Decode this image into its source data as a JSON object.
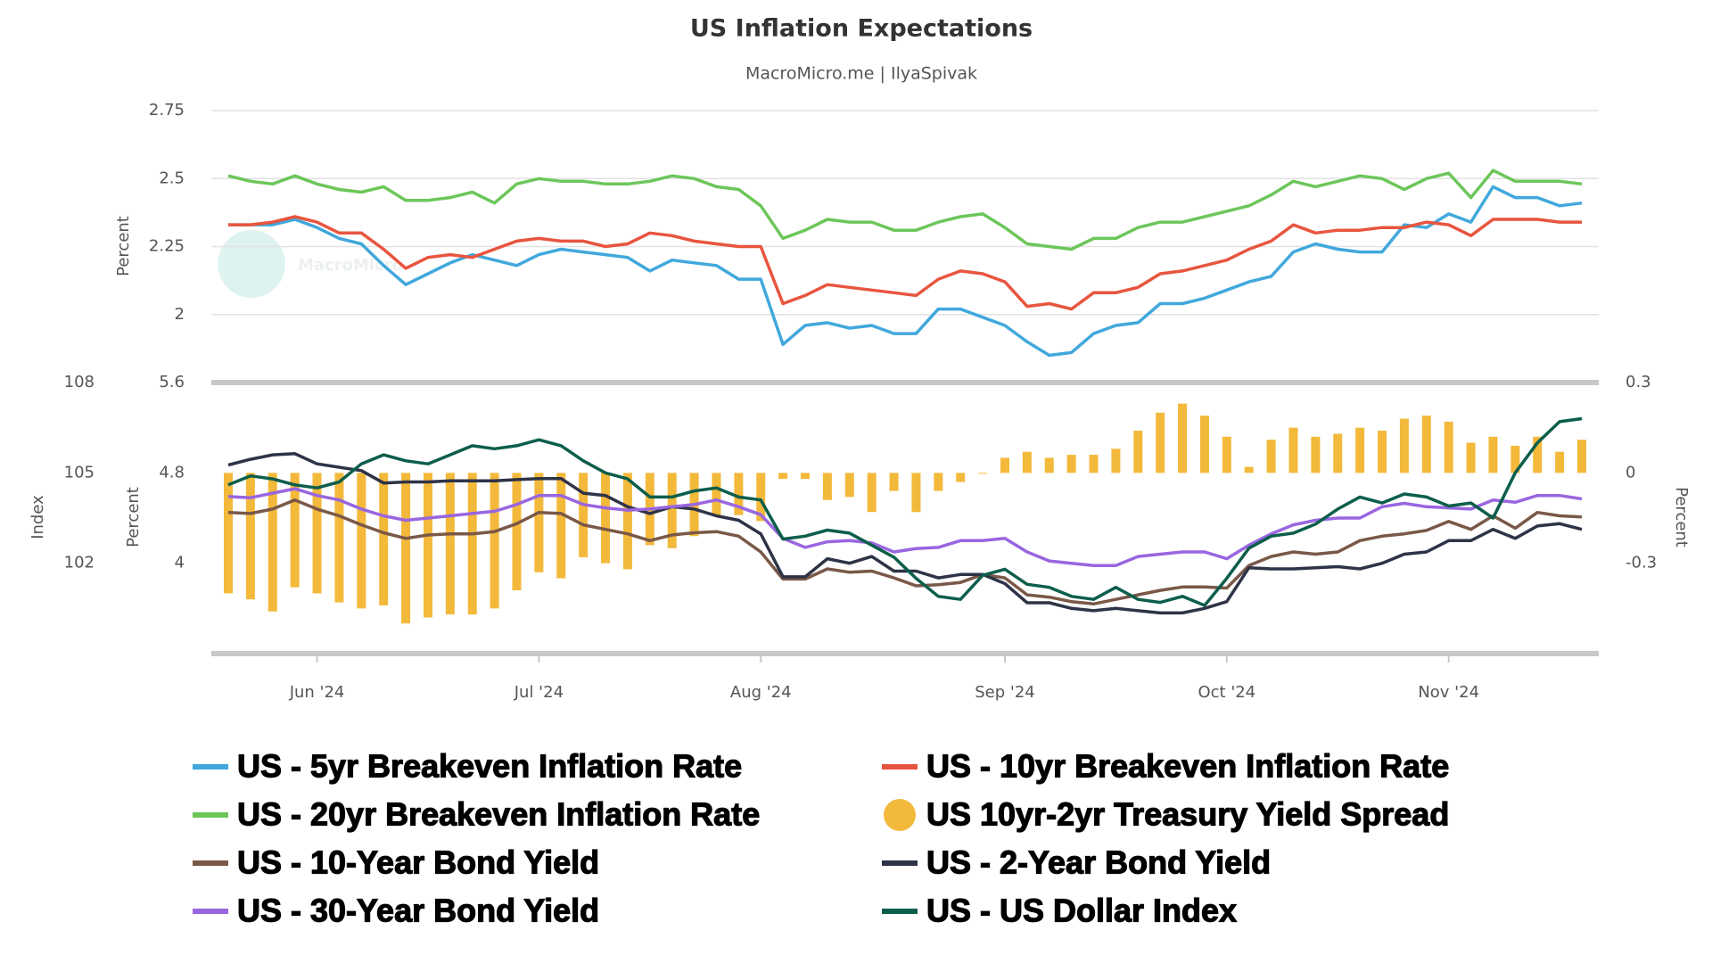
{
  "chart_data": [
    {
      "type": "line",
      "title": "US Inflation Expectations",
      "subtitle": "MacroMicro.me | IlyaSpivak",
      "watermark": "MacroMicro",
      "ylabel": "Percent",
      "ylim": [
        1.75,
        2.75
      ],
      "yticks": [
        2,
        2.25,
        2.5,
        2.75
      ],
      "grid": true,
      "series": [
        {
          "name": "US - 5yr Breakeven Inflation Rate",
          "color": "#41a8dc",
          "values": [
            2.33,
            2.33,
            2.33,
            2.35,
            2.32,
            2.28,
            2.26,
            2.18,
            2.11,
            2.15,
            2.19,
            2.22,
            2.2,
            2.18,
            2.22,
            2.24,
            2.23,
            2.22,
            2.21,
            2.16,
            2.2,
            2.19,
            2.18,
            2.13,
            2.13,
            1.89,
            1.96,
            1.97,
            1.95,
            1.96,
            1.93,
            1.93,
            2.02,
            2.02,
            1.99,
            1.96,
            1.9,
            1.85,
            1.86,
            1.93,
            1.96,
            1.97,
            2.04,
            2.04,
            2.06,
            2.09,
            2.12,
            2.14,
            2.23,
            2.26,
            2.24,
            2.23,
            2.23,
            2.33,
            2.32,
            2.37,
            2.34,
            2.47,
            2.43,
            2.43,
            2.4,
            2.41
          ]
        },
        {
          "name": "US - 10yr Breakeven Inflation Rate",
          "color": "#e8553f",
          "values": [
            2.33,
            2.33,
            2.34,
            2.36,
            2.34,
            2.3,
            2.3,
            2.24,
            2.17,
            2.21,
            2.22,
            2.21,
            2.24,
            2.27,
            2.28,
            2.27,
            2.27,
            2.25,
            2.26,
            2.3,
            2.29,
            2.27,
            2.26,
            2.25,
            2.25,
            2.04,
            2.07,
            2.11,
            2.1,
            2.09,
            2.08,
            2.07,
            2.13,
            2.16,
            2.15,
            2.12,
            2.03,
            2.04,
            2.02,
            2.08,
            2.08,
            2.1,
            2.15,
            2.16,
            2.18,
            2.2,
            2.24,
            2.27,
            2.33,
            2.3,
            2.31,
            2.31,
            2.32,
            2.32,
            2.34,
            2.33,
            2.29,
            2.35,
            2.35,
            2.35,
            2.34,
            2.34
          ]
        },
        {
          "name": "US - 20yr Breakeven Inflation Rate",
          "color": "#6cc65a",
          "values": [
            2.51,
            2.49,
            2.48,
            2.51,
            2.48,
            2.46,
            2.45,
            2.47,
            2.42,
            2.42,
            2.43,
            2.45,
            2.41,
            2.48,
            2.5,
            2.49,
            2.49,
            2.48,
            2.48,
            2.49,
            2.51,
            2.5,
            2.47,
            2.46,
            2.4,
            2.28,
            2.31,
            2.35,
            2.34,
            2.34,
            2.31,
            2.31,
            2.34,
            2.36,
            2.37,
            2.32,
            2.26,
            2.25,
            2.24,
            2.28,
            2.28,
            2.32,
            2.34,
            2.34,
            2.36,
            2.38,
            2.4,
            2.44,
            2.49,
            2.47,
            2.49,
            2.51,
            2.5,
            2.46,
            2.5,
            2.52,
            2.43,
            2.53,
            2.49,
            2.49,
            2.49,
            2.48
          ]
        }
      ]
    },
    {
      "type": "combo",
      "categories": [
        null,
        null,
        null,
        null,
        "Jun '24",
        null,
        null,
        null,
        null,
        null,
        null,
        null,
        null,
        null,
        "Jul '24",
        null,
        null,
        null,
        null,
        null,
        null,
        null,
        null,
        null,
        "Aug '24",
        null,
        null,
        null,
        null,
        null,
        null,
        null,
        null,
        null,
        null,
        "Sep '24",
        null,
        null,
        null,
        null,
        null,
        null,
        null,
        null,
        null,
        "Oct '24",
        null,
        null,
        null,
        null,
        null,
        null,
        null,
        null,
        null,
        "Nov '24",
        null,
        null,
        null,
        null,
        null,
        null
      ],
      "ylabel": "Percent",
      "ylim": [
        3.2,
        5.6
      ],
      "yticks": [
        4,
        4.8,
        5.6
      ],
      "y2label": "Percent",
      "y2lim": [
        -0.6,
        0.3
      ],
      "y2ticks": [
        -0.3,
        0,
        0.3
      ],
      "y3label": "Index",
      "y3lim": [
        99,
        108
      ],
      "y3ticks": [
        102,
        105,
        108
      ],
      "series": [
        {
          "name": "US 10yr-2yr Treasury Yield Spread",
          "type": "bar",
          "axis": "y2",
          "color": "#f3b93b",
          "values": [
            -0.4,
            -0.42,
            -0.46,
            -0.38,
            -0.4,
            -0.43,
            -0.45,
            -0.44,
            -0.5,
            -0.48,
            -0.47,
            -0.47,
            -0.45,
            -0.39,
            -0.33,
            -0.35,
            -0.28,
            -0.3,
            -0.32,
            -0.24,
            -0.25,
            -0.21,
            -0.14,
            -0.14,
            -0.16,
            -0.02,
            -0.02,
            -0.09,
            -0.08,
            -0.13,
            -0.06,
            -0.13,
            -0.06,
            -0.03,
            0,
            0.05,
            0.07,
            0.05,
            0.06,
            0.06,
            0.08,
            0.14,
            0.2,
            0.23,
            0.19,
            0.12,
            0.02,
            0.11,
            0.15,
            0.12,
            0.13,
            0.15,
            0.14,
            0.18,
            0.19,
            0.17,
            0.1,
            0.12,
            0.09,
            0.12,
            0.07,
            0.11
          ]
        },
        {
          "name": "US - 10-Year Bond Yield",
          "type": "line",
          "color": "#7a5848",
          "values": [
            4.45,
            4.44,
            4.48,
            4.56,
            4.48,
            4.42,
            4.34,
            4.27,
            4.22,
            4.25,
            4.26,
            4.26,
            4.28,
            4.35,
            4.45,
            4.44,
            4.34,
            4.3,
            4.26,
            4.2,
            4.25,
            4.27,
            4.28,
            4.24,
            4.1,
            3.86,
            3.86,
            3.95,
            3.92,
            3.93,
            3.87,
            3.8,
            3.81,
            3.83,
            3.9,
            3.87,
            3.72,
            3.7,
            3.66,
            3.64,
            3.68,
            3.72,
            3.76,
            3.79,
            3.79,
            3.78,
            3.98,
            4.06,
            4.1,
            4.08,
            4.1,
            4.2,
            4.24,
            4.26,
            4.29,
            4.37,
            4.3,
            4.42,
            4.31,
            4.45,
            4.42,
            4.41
          ]
        },
        {
          "name": "US - 2-Year Bond Yield",
          "type": "line",
          "color": "#2e3347",
          "values": [
            4.87,
            4.92,
            4.96,
            4.97,
            4.88,
            4.85,
            4.82,
            4.71,
            4.72,
            4.72,
            4.73,
            4.73,
            4.73,
            4.74,
            4.75,
            4.75,
            4.62,
            4.6,
            4.5,
            4.44,
            4.5,
            4.48,
            4.42,
            4.38,
            4.26,
            3.88,
            3.88,
            4.04,
            4.0,
            4.06,
            3.93,
            3.93,
            3.87,
            3.9,
            3.9,
            3.82,
            3.65,
            3.65,
            3.6,
            3.58,
            3.6,
            3.58,
            3.56,
            3.56,
            3.6,
            3.66,
            3.96,
            3.95,
            3.95,
            3.96,
            3.97,
            3.95,
            4.0,
            4.08,
            4.1,
            4.2,
            4.2,
            4.3,
            4.22,
            4.33,
            4.35,
            4.3
          ]
        },
        {
          "name": "US - 30-Year Bond Yield",
          "type": "line",
          "color": "#9966e0",
          "values": [
            4.59,
            4.58,
            4.62,
            4.66,
            4.6,
            4.56,
            4.48,
            4.42,
            4.38,
            4.4,
            4.42,
            4.44,
            4.46,
            4.52,
            4.6,
            4.6,
            4.52,
            4.49,
            4.47,
            4.48,
            4.5,
            4.52,
            4.56,
            4.5,
            4.43,
            4.22,
            4.14,
            4.19,
            4.2,
            4.18,
            4.1,
            4.13,
            4.14,
            4.2,
            4.2,
            4.22,
            4.1,
            4.02,
            4.0,
            3.98,
            3.98,
            4.06,
            4.08,
            4.1,
            4.1,
            4.04,
            4.16,
            4.26,
            4.34,
            4.38,
            4.4,
            4.4,
            4.5,
            4.53,
            4.5,
            4.49,
            4.48,
            4.56,
            4.54,
            4.6,
            4.6,
            4.57
          ]
        },
        {
          "name": "US - US Dollar Index",
          "type": "line",
          "axis": "y3",
          "color": "#0c5e4b",
          "values": [
            104.6,
            104.9,
            104.8,
            104.6,
            104.5,
            104.7,
            105.3,
            105.6,
            105.4,
            105.3,
            105.6,
            105.9,
            105.8,
            105.9,
            106.1,
            105.9,
            105.4,
            105.0,
            104.8,
            104.2,
            104.2,
            104.4,
            104.5,
            104.2,
            104.1,
            102.8,
            102.9,
            103.1,
            103.0,
            102.6,
            102.2,
            101.5,
            100.9,
            100.8,
            101.6,
            101.8,
            101.3,
            101.2,
            100.9,
            100.8,
            101.2,
            100.8,
            100.7,
            100.9,
            100.6,
            101.5,
            102.5,
            102.9,
            103.0,
            103.3,
            103.8,
            104.2,
            104.0,
            104.3,
            104.2,
            103.9,
            104.0,
            103.5,
            105.0,
            106.0,
            106.7,
            106.8
          ]
        }
      ]
    }
  ]
}
